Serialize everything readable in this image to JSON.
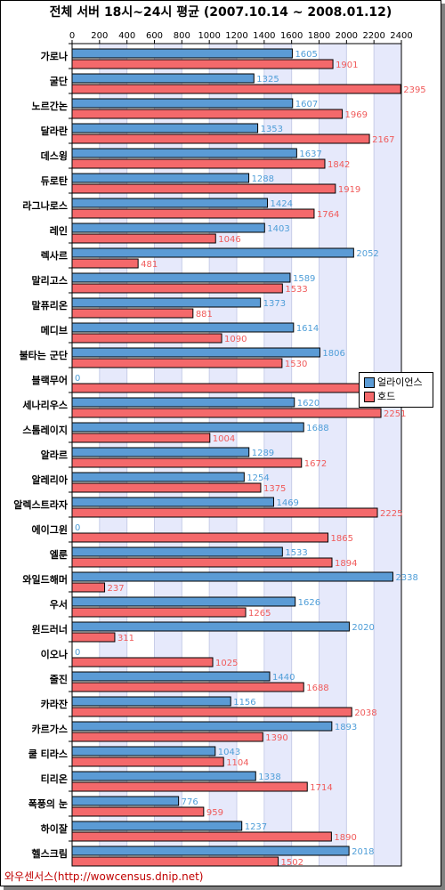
{
  "title": "전체 서버 18시~24시 평균 (2007.10.14 ~ 2008.01.12)",
  "footer": "와우센서스(http://wowcensus.dnip.net)",
  "colors": {
    "alliance": "#5b9bd5",
    "horde": "#f4696b",
    "alliance_text": "#4f9ed8",
    "horde_text": "#f05a5a",
    "band": "#e6e9fb"
  },
  "chart_data": {
    "type": "bar",
    "orientation": "horizontal",
    "title": "전체 서버 18시~24시 평균 (2007.10.14 ~ 2008.01.12)",
    "xlim": [
      0,
      2400
    ],
    "xticks": [
      0,
      200,
      400,
      600,
      800,
      1000,
      1200,
      1400,
      1600,
      1800,
      2000,
      2200,
      2400
    ],
    "legend_position": "right",
    "categories": [
      "가로나",
      "굴단",
      "노르간논",
      "달라란",
      "데스윙",
      "듀로탄",
      "라그나로스",
      "레인",
      "렉사르",
      "말리고스",
      "말퓨리온",
      "메디브",
      "불타는 군단",
      "블랙무어",
      "세나리우스",
      "스톰레이지",
      "알라르",
      "알레리아",
      "알렉스트라자",
      "에이그윈",
      "엘룬",
      "와일드해머",
      "우서",
      "윈드러너",
      "이오나",
      "줄진",
      "카라잔",
      "카르가스",
      "쿨 티라스",
      "티리온",
      "폭풍의 눈",
      "하이잘",
      "헬스크림"
    ],
    "series": [
      {
        "name": "얼라이언스",
        "values": [
          1605,
          1325,
          1607,
          1353,
          1637,
          1288,
          1424,
          1403,
          2052,
          1589,
          1373,
          1614,
          1806,
          0,
          1620,
          1688,
          1289,
          1254,
          1469,
          0,
          1533,
          2338,
          1626,
          2020,
          0,
          1440,
          1156,
          1893,
          1043,
          1338,
          776,
          1237,
          2018
        ]
      },
      {
        "name": "호드",
        "values": [
          1901,
          2395,
          1969,
          2167,
          1842,
          1919,
          1764,
          1046,
          481,
          1533,
          881,
          1090,
          1530,
          2390,
          2251,
          1004,
          1672,
          1375,
          2225,
          1865,
          1894,
          237,
          1265,
          311,
          1025,
          1688,
          2038,
          1390,
          1104,
          1714,
          959,
          1890,
          1502
        ]
      }
    ]
  }
}
